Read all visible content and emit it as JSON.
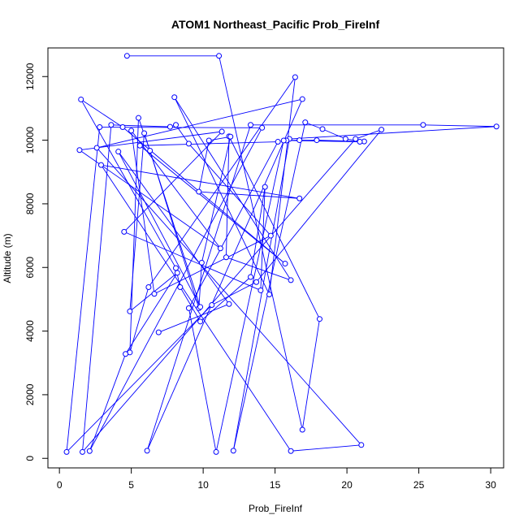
{
  "chart_data": {
    "type": "line",
    "title": "ATOM1 Northeast_Pacific Prob_FireInf",
    "xlabel": "Prob_FireInf",
    "ylabel": "Altitude (m)",
    "xlim": [
      -0.8,
      30.9
    ],
    "ylim": [
      -300,
      12900
    ],
    "xticks": [
      0,
      5,
      10,
      15,
      20,
      25,
      30
    ],
    "yticks": [
      0,
      2000,
      4000,
      6000,
      8000,
      10000,
      12000
    ],
    "grid": false,
    "colors": {
      "series": "#0000ff",
      "axes": "#000000"
    },
    "series": [
      {
        "name": "",
        "points": [
          [
            4.7,
            12650
          ],
          [
            11.1,
            12650
          ],
          [
            16.9,
            900
          ],
          [
            18.1,
            4380
          ],
          [
            11.8,
            10120
          ],
          [
            11.6,
            6320
          ],
          [
            16.1,
            5600
          ],
          [
            8.0,
            11350
          ],
          [
            14.6,
            5150
          ],
          [
            16.4,
            11980
          ],
          [
            6.2,
            5380
          ],
          [
            4.9,
            3330
          ],
          [
            5.5,
            10700
          ],
          [
            6.3,
            9670
          ],
          [
            9.7,
            4720
          ],
          [
            9.9,
            6150
          ],
          [
            11.9,
            10110
          ],
          [
            10.4,
            9990
          ],
          [
            9.7,
            8380
          ],
          [
            16.7,
            8170
          ],
          [
            2.9,
            9220
          ],
          [
            16.1,
            230
          ],
          [
            21.0,
            420
          ],
          [
            2.6,
            9760
          ],
          [
            16.9,
            11290
          ],
          [
            6.1,
            240
          ],
          [
            13.3,
            10480
          ],
          [
            25.3,
            10480
          ],
          [
            30.4,
            10430
          ],
          [
            16.0,
            10040
          ],
          [
            12.1,
            240
          ],
          [
            17.1,
            10560
          ],
          [
            18.3,
            10350
          ],
          [
            19.9,
            10040
          ],
          [
            21.2,
            9960
          ],
          [
            17.9,
            10000
          ],
          [
            15.8,
            9990
          ],
          [
            20.9,
            9950
          ],
          [
            16.7,
            10000
          ],
          [
            15.6,
            9990
          ],
          [
            10.9,
            200
          ],
          [
            9.0,
            4720
          ],
          [
            15.2,
            9950
          ],
          [
            5.6,
            9830
          ],
          [
            15.7,
            6120
          ],
          [
            4.4,
            10410
          ],
          [
            1.5,
            11280
          ],
          [
            8.1,
            5980
          ],
          [
            8.4,
            5380
          ],
          [
            9.8,
            4300
          ],
          [
            13.3,
            5700
          ],
          [
            14.3,
            8530
          ],
          [
            14.0,
            5280
          ],
          [
            4.5,
            7120
          ],
          [
            11.3,
            10270
          ],
          [
            1.4,
            9690
          ],
          [
            11.2,
            6600
          ],
          [
            5.0,
            10300
          ],
          [
            6.6,
            5170
          ],
          [
            14.7,
            7000
          ],
          [
            9.0,
            9890
          ],
          [
            8.1,
            10480
          ],
          [
            7.7,
            10420
          ],
          [
            3.6,
            10480
          ],
          [
            1.6,
            200
          ],
          [
            20.6,
            10040
          ],
          [
            22.4,
            10330
          ],
          [
            13.7,
            5540
          ],
          [
            10.6,
            4820
          ],
          [
            0.5,
            200
          ],
          [
            2.8,
            10410
          ],
          [
            14.1,
            10390
          ],
          [
            2.1,
            230
          ],
          [
            4.6,
            3280
          ],
          [
            8.2,
            5830
          ],
          [
            4.9,
            4620
          ],
          [
            5.9,
            10220
          ],
          [
            9.8,
            4760
          ],
          [
            4.1,
            9640
          ],
          [
            11.8,
            4850
          ],
          [
            6.9,
            3960
          ]
        ]
      }
    ]
  }
}
